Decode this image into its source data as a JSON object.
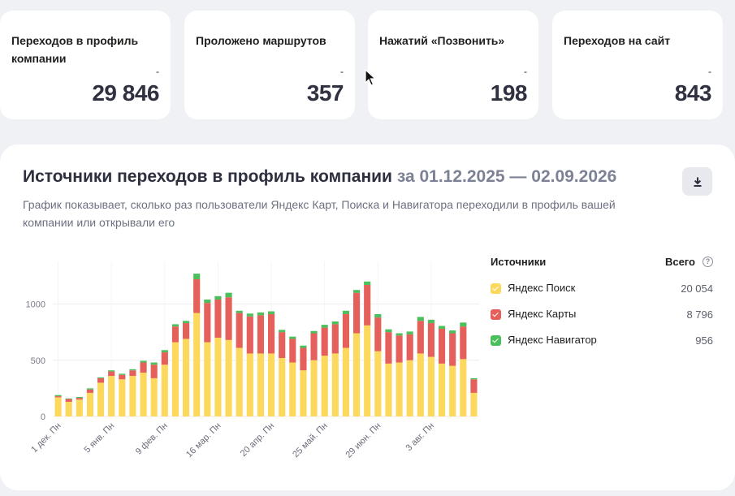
{
  "stats": [
    {
      "title": "Переходов в профиль компании",
      "dash": "-",
      "value": "29 846"
    },
    {
      "title": "Проложено маршрутов",
      "dash": "-",
      "value": "357"
    },
    {
      "title": "Нажатий «Позвонить»",
      "dash": "-",
      "value": "198"
    },
    {
      "title": "Переходов на сайт",
      "dash": "-",
      "value": "843"
    }
  ],
  "panel": {
    "title": "Источники переходов в профиль компании",
    "period": "за 01.12.2025 — 02.09.2026",
    "description": "График показывает, сколько раз пользователи Яндекс Карт, Поиска и Навигатора переходили в профиль вашей компании или открывали его",
    "download_icon": "download-icon"
  },
  "legend": {
    "title": "Источники",
    "total_label": "Всего",
    "help_icon": "help-icon",
    "items": [
      {
        "label": "Яндекс Поиск",
        "value": "20 054",
        "color": "#fcd95d"
      },
      {
        "label": "Яндекс Карты",
        "value": "8 796",
        "color": "#e5605a"
      },
      {
        "label": "Яндекс Навигатор",
        "value": "956",
        "color": "#4bbf5c"
      }
    ]
  },
  "chart_data": {
    "type": "bar",
    "stacked": true,
    "y_ticks": [
      "0",
      "500",
      "1000"
    ],
    "ylim": [
      0,
      1300
    ],
    "x_tick_labels": [
      "1 дек. Пн",
      "5 янв. Пн",
      "9 фев. Пн",
      "16 мар. Пн",
      "20 апр. Пн",
      "25 май. Пн",
      "29 июн. Пн",
      "3 авг. Пн"
    ],
    "x_tick_positions": [
      0,
      5,
      10,
      15,
      20,
      25,
      30,
      35
    ],
    "grid": true,
    "legend_position": "right",
    "series": [
      {
        "name": "Яндекс Поиск",
        "color": "#fcd95d",
        "values": [
          170,
          130,
          150,
          210,
          300,
          360,
          330,
          360,
          390,
          340,
          460,
          660,
          690,
          920,
          660,
          700,
          680,
          610,
          560,
          560,
          560,
          520,
          480,
          410,
          500,
          540,
          560,
          610,
          740,
          810,
          580,
          470,
          480,
          500,
          560,
          530,
          470,
          450,
          510,
          210
        ]
      },
      {
        "name": "Яндекс Карты",
        "color": "#e5605a",
        "values": [
          10,
          25,
          15,
          30,
          40,
          40,
          40,
          50,
          90,
          120,
          110,
          140,
          140,
          300,
          350,
          340,
          380,
          310,
          330,
          340,
          350,
          230,
          210,
          200,
          240,
          250,
          260,
          300,
          360,
          360,
          300,
          280,
          240,
          230,
          290,
          300,
          310,
          290,
          290,
          120
        ]
      },
      {
        "name": "Яндекс Навигатор",
        "color": "#4bbf5c",
        "values": [
          10,
          5,
          8,
          10,
          8,
          10,
          10,
          10,
          15,
          20,
          20,
          20,
          20,
          50,
          30,
          30,
          40,
          20,
          25,
          25,
          25,
          20,
          20,
          20,
          20,
          25,
          25,
          30,
          25,
          30,
          30,
          25,
          20,
          25,
          35,
          30,
          25,
          25,
          35,
          10
        ]
      }
    ]
  }
}
